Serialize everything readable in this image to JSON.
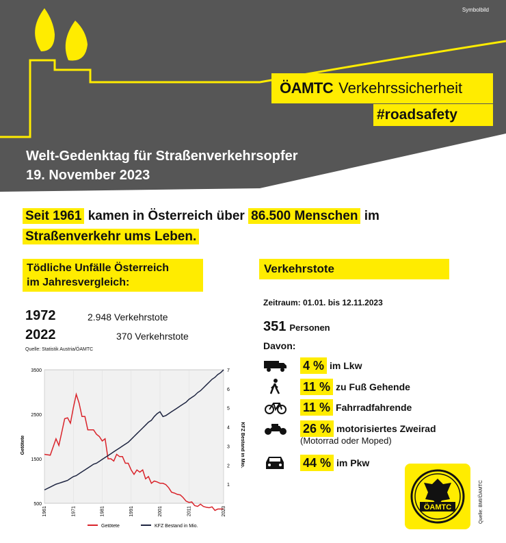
{
  "header": {
    "symbolbild": "Symbolbild",
    "brand_logo": "ÖAMTC",
    "brand_text": "Verkehrssicherheit",
    "hashtag": "#roadsafety",
    "title_line1": "Welt-Gedenktag für Straßenverkehrsopfer",
    "title_line2": "19. November 2023"
  },
  "headline": {
    "seit": "Seit 1961",
    "kamen": "kamen in Österreich über",
    "number": "86.500 Menschen",
    "im": "im",
    "line2": "Straßenverkehr ums Leben."
  },
  "left": {
    "section_title_1": "Tödliche Unfälle Österreich",
    "section_title_2": "im Jahresvergleich:",
    "rows": [
      {
        "year": "1972",
        "value": "2.948 Verkehrstote"
      },
      {
        "year": "2022",
        "value": "370 Verkehrstote"
      }
    ],
    "source": "Quelle: Statistik Austria/ÖAMTC"
  },
  "right": {
    "section_title": "Verkehrstote",
    "zeitraum": "Zeitraum: 01.01. bis 12.11.2023",
    "count": "351",
    "count_label": "Personen",
    "davon": "Davon:",
    "stats": [
      {
        "icon": "truck-icon",
        "pct": "4 %",
        "label": "im Lkw"
      },
      {
        "icon": "pedestrian-icon",
        "pct": "11 %",
        "label": "zu Fuß Gehende"
      },
      {
        "icon": "bicycle-icon",
        "pct": "11 %",
        "label": "Fahrradfahrende"
      },
      {
        "icon": "motorcycle-icon",
        "pct": "26 %",
        "label": "motorisiertes Zweirad"
      },
      {
        "icon": "car-icon",
        "pct": "44 %",
        "label": "im Pkw"
      }
    ],
    "motor_sub": "(Motorrad oder Moped)",
    "logo_text": "ÖAMTC",
    "source": "Quelle: BMI/ÖAMTC"
  },
  "colors": {
    "yellow": "#ffec00",
    "gray": "#565656",
    "red": "#d9232a",
    "navy": "#1d2440"
  },
  "chart_data": {
    "type": "line",
    "x": [
      1961,
      1963,
      1965,
      1966,
      1967,
      1968,
      1969,
      1970,
      1971,
      1972,
      1973,
      1974,
      1975,
      1976,
      1977,
      1978,
      1979,
      1980,
      1981,
      1982,
      1983,
      1984,
      1985,
      1986,
      1987,
      1988,
      1989,
      1990,
      1991,
      1992,
      1993,
      1994,
      1995,
      1996,
      1997,
      1998,
      1999,
      2000,
      2001,
      2002,
      2003,
      2004,
      2005,
      2006,
      2007,
      2008,
      2009,
      2010,
      2011,
      2012,
      2013,
      2014,
      2015,
      2016,
      2017,
      2018,
      2019,
      2020,
      2021,
      2022,
      2023
    ],
    "series": [
      {
        "name": "Getötete",
        "axis": "left",
        "color": "#d9232a",
        "values": [
          1600,
          1580,
          1950,
          1800,
          2100,
          2400,
          2420,
          2300,
          2650,
          2948,
          2750,
          2450,
          2450,
          2150,
          2150,
          2150,
          2050,
          2000,
          1900,
          1950,
          1500,
          1500,
          1450,
          1600,
          1550,
          1550,
          1400,
          1400,
          1250,
          1150,
          1250,
          1200,
          1250,
          1050,
          1100,
          950,
          1000,
          980,
          950,
          950,
          920,
          850,
          750,
          730,
          700,
          690,
          630,
          550,
          520,
          530,
          450,
          430,
          480,
          430,
          410,
          400,
          420,
          340,
          370,
          370,
          370
        ]
      },
      {
        "name": "KFZ Bestand in Mio.",
        "axis": "right",
        "color": "#1d2440",
        "values": [
          0.7,
          0.85,
          1.0,
          1.05,
          1.1,
          1.15,
          1.2,
          1.3,
          1.4,
          1.45,
          1.55,
          1.65,
          1.75,
          1.85,
          1.95,
          2.05,
          2.1,
          2.2,
          2.3,
          2.4,
          2.5,
          2.6,
          2.7,
          2.8,
          2.9,
          3.0,
          3.1,
          3.2,
          3.35,
          3.5,
          3.65,
          3.8,
          3.95,
          4.1,
          4.25,
          4.35,
          4.55,
          4.7,
          4.8,
          4.55,
          4.6,
          4.7,
          4.8,
          4.9,
          5.0,
          5.1,
          5.2,
          5.3,
          5.45,
          5.55,
          5.65,
          5.8,
          5.9,
          6.05,
          6.2,
          6.35,
          6.5,
          6.6,
          6.75,
          6.85,
          7.0
        ]
      }
    ],
    "xticks": [
      "1961",
      "1971",
      "1981",
      "1991",
      "2001",
      "2011",
      "2023"
    ],
    "ylabel": "Getötete",
    "ylabel_right": "KFZ Bestand in Mio.",
    "ylim": [
      500,
      3500
    ],
    "yticks": [
      "500",
      "1500",
      "2500",
      "3500"
    ],
    "ylim_right": [
      0,
      7
    ],
    "yticks_right": [
      "1",
      "2",
      "3",
      "4",
      "5",
      "6",
      "7"
    ],
    "legend": [
      "Getötete",
      "KFZ Bestand in Mio."
    ]
  }
}
